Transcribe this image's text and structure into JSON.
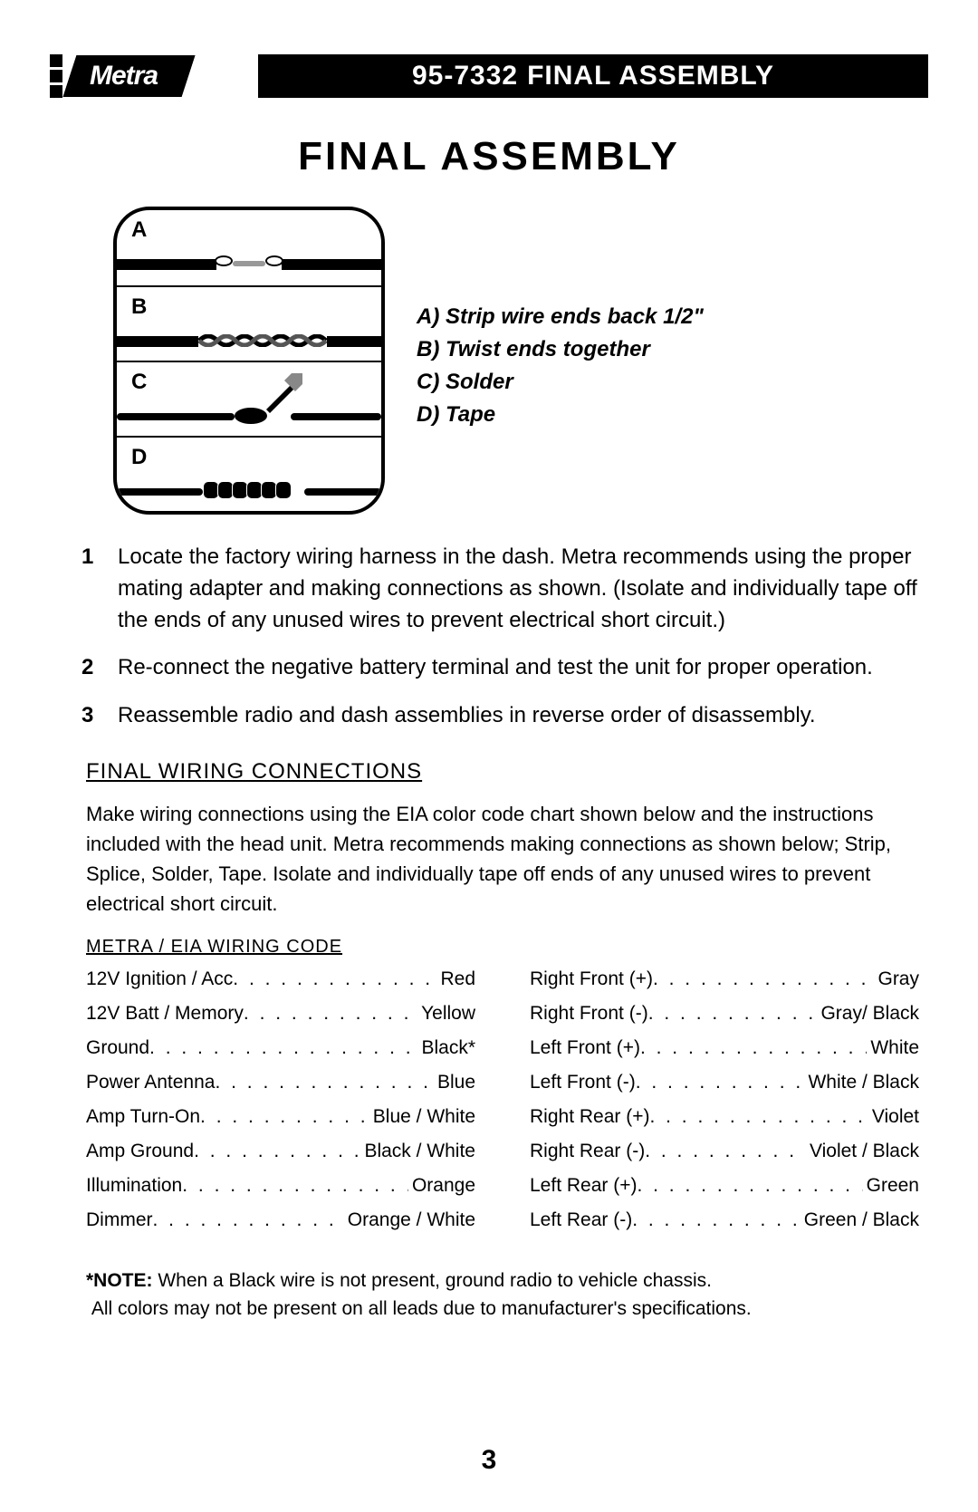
{
  "header": {
    "logo_text": "Metra",
    "part_number": "95-7332",
    "section_title": "FINAL ASSEMBLY"
  },
  "main_title": "FINAL ASSEMBLY",
  "diagram": {
    "labels": [
      "A",
      "B",
      "C",
      "D"
    ],
    "legend": [
      "A) Strip wire ends back 1/2\"",
      "B) Twist ends together",
      "C) Solder",
      "D) Tape"
    ]
  },
  "numbered_steps": [
    "Locate the factory wiring harness in the dash. Metra recommends using the proper mating adapter and making connections as shown. (Isolate and individually tape off the ends of any unused wires to prevent electrical short circuit.)",
    "Re-connect the negative battery terminal and test the unit for proper operation.",
    "Reassemble radio and dash assemblies in reverse order of disassembly."
  ],
  "wiring": {
    "heading": "FINAL WIRING CONNECTIONS",
    "intro": "Make wiring connections using the EIA color code chart shown below and the instructions included with the head unit. Metra recommends making connections as shown below; Strip, Splice, Solder, Tape. Isolate and individually tape off ends of any unused wires to prevent electrical short circuit.",
    "code_heading": "METRA / EIA WIRING CODE",
    "left": [
      {
        "label": "12V Ignition / Acc",
        "color": "Red"
      },
      {
        "label": "12V Batt / Memory",
        "color": "Yellow"
      },
      {
        "label": "Ground",
        "color": "Black*"
      },
      {
        "label": "Power Antenna",
        "color": "Blue"
      },
      {
        "label": "Amp Turn-On",
        "color": "Blue / White"
      },
      {
        "label": "Amp Ground",
        "color": "Black / White"
      },
      {
        "label": "Illumination",
        "color": "Orange"
      },
      {
        "label": "Dimmer",
        "color": "Orange / White"
      }
    ],
    "right": [
      {
        "label": "Right Front (+)",
        "color": "Gray"
      },
      {
        "label": "Right Front (-)",
        "color": "Gray/ Black"
      },
      {
        "label": "Left Front (+)",
        "color": "White"
      },
      {
        "label": "Left Front (-)",
        "color": "White / Black"
      },
      {
        "label": "Right Rear (+)",
        "color": "Violet"
      },
      {
        "label": "Right Rear (-)",
        "color": "Violet / Black"
      },
      {
        "label": "Left Rear (+)",
        "color": "Green"
      },
      {
        "label": "Left Rear (-)",
        "color": "Green / Black"
      }
    ],
    "note_bold": "*NOTE:",
    "note_1": " When a Black wire is not present, ground radio to vehicle chassis.",
    "note_2": "All colors may not be present on all leads due to manufacturer's specifications."
  },
  "page_number": "3"
}
